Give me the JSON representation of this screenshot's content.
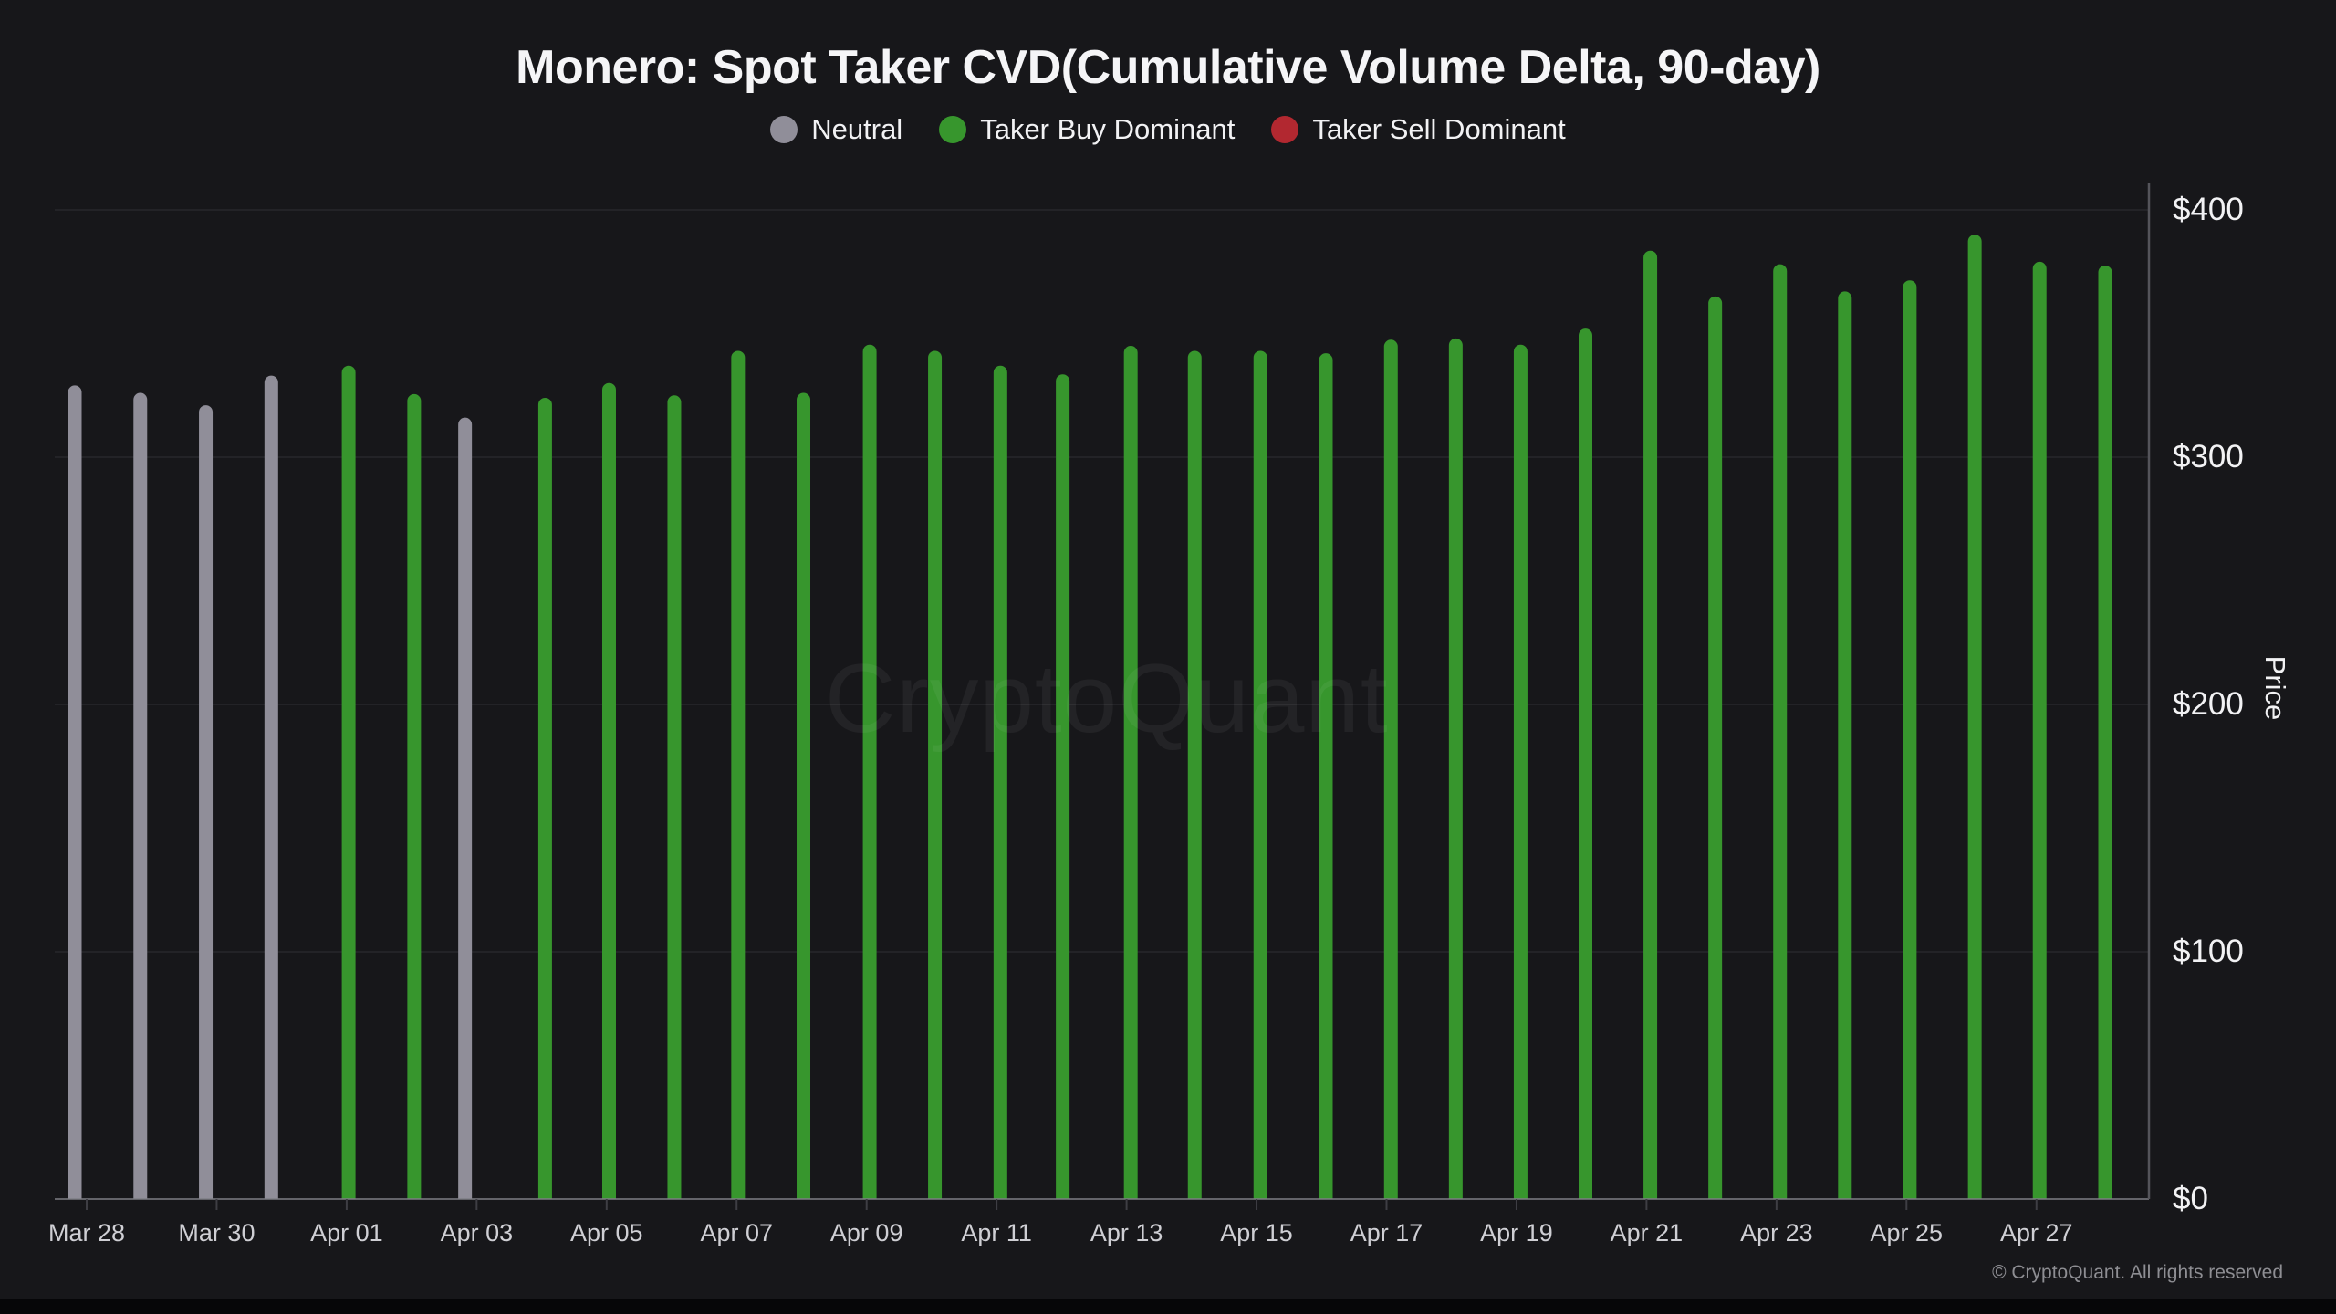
{
  "title": "Monero: Spot Taker CVD(Cumulative Volume Delta, 90-day)",
  "legend": {
    "items": [
      {
        "label": "Neutral",
        "key": "neutral"
      },
      {
        "label": "Taker Buy Dominant",
        "key": "buy"
      },
      {
        "label": "Taker Sell Dominant",
        "key": "sell"
      }
    ]
  },
  "watermark": "CryptoQuant",
  "copyright": "© CryptoQuant. All rights reserved",
  "colors": {
    "neutral": "#908e99",
    "buy": "#37962d",
    "sell": "#b22830",
    "background": "#17171a",
    "grid": "#232327",
    "baseline": "#7e7e85",
    "axis_line": "#54545a",
    "tick": "#3e3e44",
    "x_label": "#cfcfd4",
    "y_label": "#f2f2f4",
    "title_text": "#f5f5f7"
  },
  "chart_data": {
    "type": "bar",
    "title": "Monero: Spot Taker CVD(Cumulative Volume Delta, 90-day)",
    "xlabel": "",
    "ylabel": "Price",
    "ylim": [
      0,
      400
    ],
    "yticks": [
      0,
      100,
      200,
      300,
      400
    ],
    "ytick_labels": [
      "$0",
      "$100",
      "$200",
      "$300",
      "$400"
    ],
    "grid": true,
    "legend_position": "top",
    "categories": [
      "Mar 28",
      "Mar 29",
      "Mar 30",
      "Mar 31",
      "Apr 01",
      "Apr 02",
      "Apr 03",
      "Apr 04",
      "Apr 05",
      "Apr 06",
      "Apr 07",
      "Apr 08",
      "Apr 09",
      "Apr 10",
      "Apr 11",
      "Apr 12",
      "Apr 13",
      "Apr 14",
      "Apr 15",
      "Apr 16",
      "Apr 17",
      "Apr 18",
      "Apr 19",
      "Apr 20",
      "Apr 21",
      "Apr 22",
      "Apr 23",
      "Apr 24",
      "Apr 25",
      "Apr 26",
      "Apr 27",
      "Apr 28"
    ],
    "values": [
      329,
      326,
      321,
      333,
      337,
      325.5,
      316,
      324,
      330,
      325,
      343,
      326,
      345.5,
      343,
      337,
      333.5,
      345,
      343,
      343,
      342,
      347.5,
      348,
      345.5,
      352,
      383.5,
      365,
      378,
      367,
      371.5,
      390,
      379,
      377.5
    ],
    "statuses": [
      "neutral",
      "neutral",
      "neutral",
      "neutral",
      "buy",
      "buy",
      "neutral",
      "buy",
      "buy",
      "buy",
      "buy",
      "buy",
      "buy",
      "buy",
      "buy",
      "buy",
      "buy",
      "buy",
      "buy",
      "buy",
      "buy",
      "buy",
      "buy",
      "buy",
      "buy",
      "buy",
      "buy",
      "buy",
      "buy",
      "buy",
      "buy",
      "buy"
    ],
    "x_labels_shown": [
      "Mar 28",
      "Mar 30",
      "Apr 01",
      "Apr 03",
      "Apr 05",
      "Apr 07",
      "Apr 09",
      "Apr 11",
      "Apr 13",
      "Apr 15",
      "Apr 17",
      "Apr 19",
      "Apr 21",
      "Apr 23",
      "Apr 25",
      "Apr 27"
    ]
  }
}
